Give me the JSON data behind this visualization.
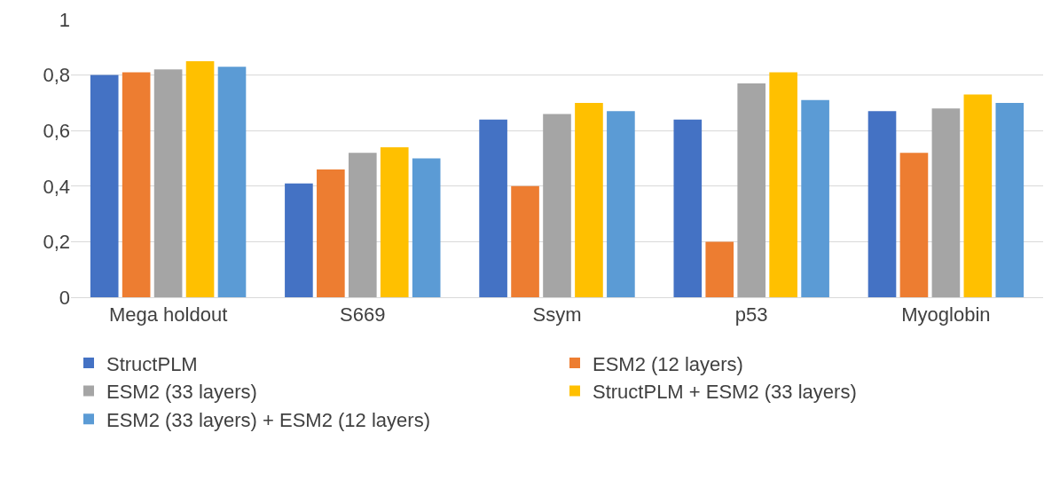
{
  "chart_data": {
    "type": "bar",
    "categories": [
      "Mega holdout",
      "S669",
      "Ssym",
      "p53",
      "Myoglobin"
    ],
    "series": [
      {
        "name": "StructPLM",
        "color": "#4472c4",
        "values": [
          0.8,
          0.41,
          0.64,
          0.64,
          0.67
        ]
      },
      {
        "name": "ESM2 (12 layers)",
        "color": "#ed7d31",
        "values": [
          0.81,
          0.46,
          0.4,
          0.2,
          0.52
        ]
      },
      {
        "name": "ESM2 (33 layers)",
        "color": "#a5a5a5",
        "values": [
          0.82,
          0.52,
          0.66,
          0.77,
          0.68
        ]
      },
      {
        "name": "StructPLM + ESM2 (33 layers)",
        "color": "#ffc000",
        "values": [
          0.85,
          0.54,
          0.7,
          0.81,
          0.73
        ]
      },
      {
        "name": "ESM2 (33 layers) + ESM2 (12 layers)",
        "color": "#5b9bd5",
        "values": [
          0.83,
          0.5,
          0.67,
          0.71,
          0.7
        ]
      }
    ],
    "ylim": [
      0,
      1
    ],
    "yticks": [
      0,
      {
        "value": 0.2,
        "label": "0,2"
      },
      {
        "value": 0.4,
        "label": "0,4"
      },
      {
        "value": 0.6,
        "label": "0,6"
      },
      {
        "value": 0.8,
        "label": "0,8"
      },
      1
    ],
    "grid": "y",
    "legend": "bottom"
  }
}
